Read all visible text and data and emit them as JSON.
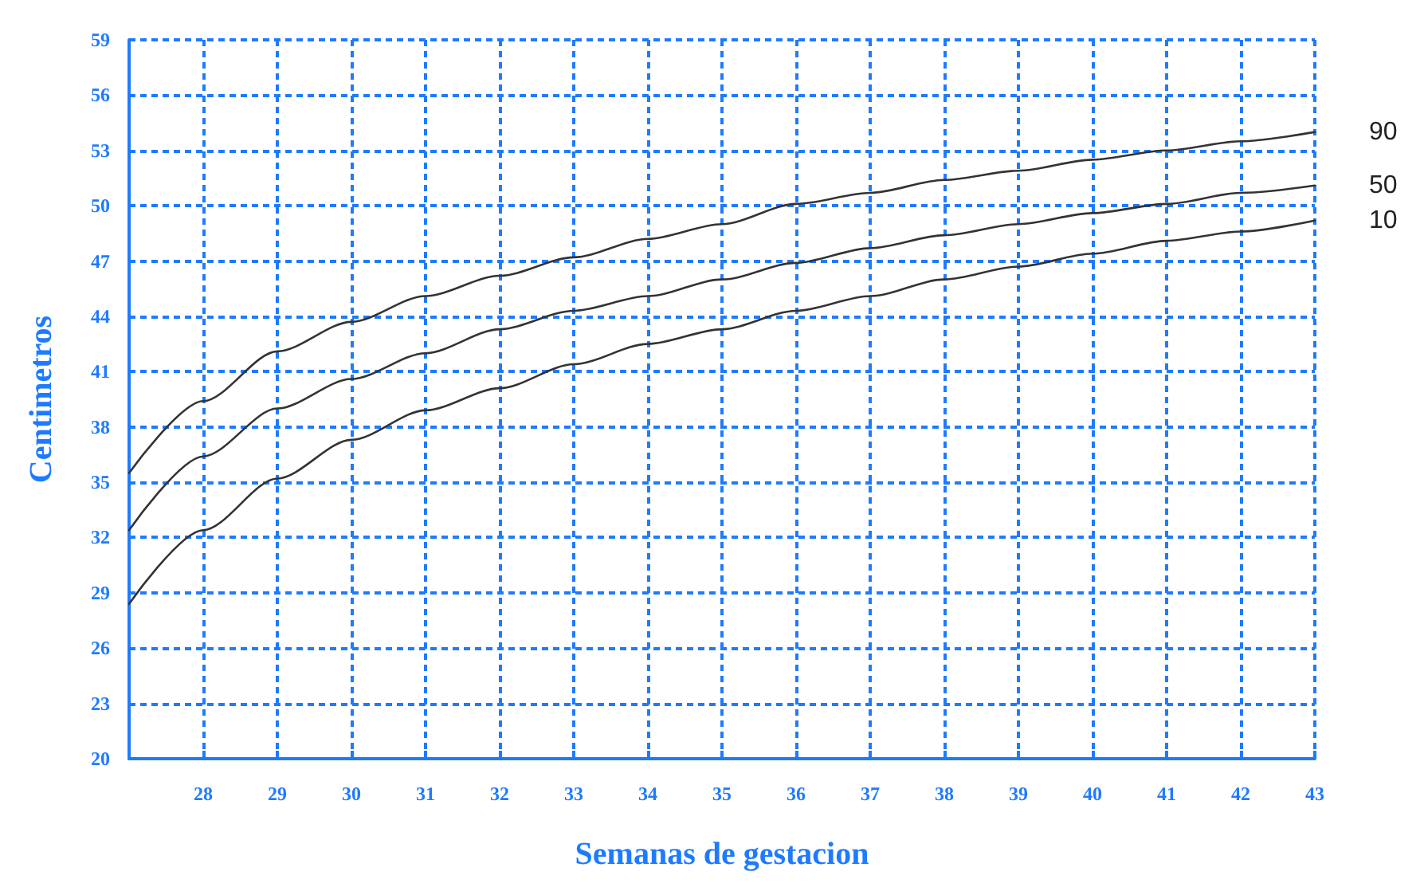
{
  "chart_data": {
    "type": "line",
    "xlabel": "Semanas de gestacion",
    "ylabel": "Centimetros",
    "x": [
      27,
      28,
      29,
      30,
      31,
      32,
      33,
      34,
      35,
      36,
      37,
      38,
      39,
      40,
      41,
      42,
      43
    ],
    "series": [
      {
        "name": "90",
        "color": "#333333",
        "values": [
          35.5,
          39.4,
          42.1,
          43.7,
          45.1,
          46.2,
          47.2,
          48.2,
          49.0,
          50.1,
          50.7,
          51.4,
          51.9,
          52.5,
          53.0,
          53.5,
          54.0
        ]
      },
      {
        "name": "50",
        "color": "#333333",
        "values": [
          32.4,
          36.4,
          39.0,
          40.6,
          42.0,
          43.3,
          44.3,
          45.1,
          46.0,
          46.9,
          47.7,
          48.4,
          49.0,
          49.6,
          50.1,
          50.7,
          51.1
        ]
      },
      {
        "name": "10",
        "color": "#333333",
        "values": [
          28.4,
          32.4,
          35.2,
          37.3,
          38.9,
          40.1,
          41.4,
          42.5,
          43.3,
          44.3,
          45.1,
          46.0,
          46.7,
          47.4,
          48.1,
          48.6,
          49.2
        ]
      }
    ],
    "xlim": [
      27,
      43
    ],
    "xticks": [
      {
        "value": 27,
        "label": null
      },
      28,
      29,
      30,
      31,
      32,
      33,
      34,
      35,
      36,
      37,
      38,
      39,
      40,
      41,
      42,
      43
    ],
    "ylim": [
      20,
      59
    ],
    "yticks": [
      20,
      23,
      26,
      29,
      32,
      35,
      38,
      41,
      44,
      47,
      50,
      53,
      56,
      59
    ],
    "grid": true,
    "marker": "none",
    "line_style": "solid",
    "legend": false
  }
}
